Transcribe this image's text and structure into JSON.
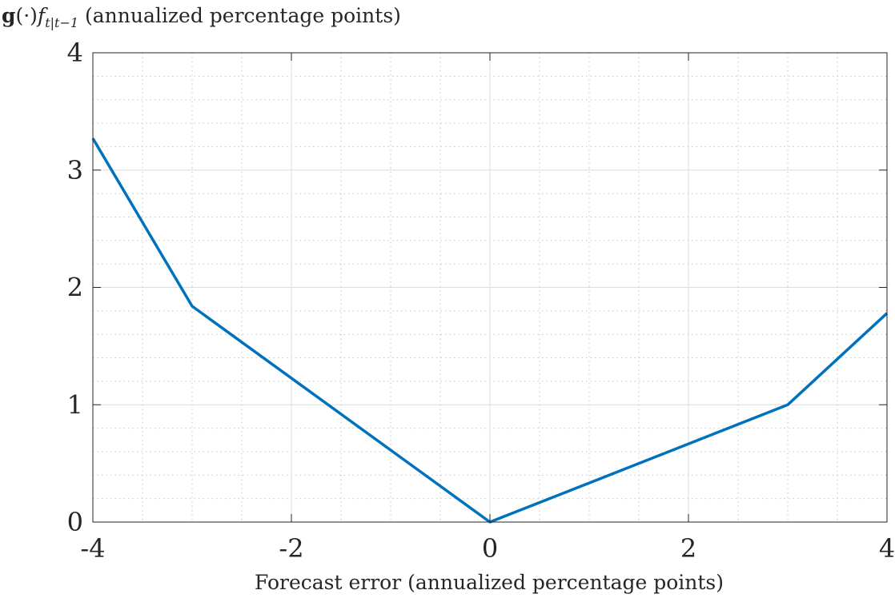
{
  "chart_data": {
    "type": "line",
    "title": "",
    "xlabel": "Forecast error (annualized percentage points)",
    "ylabel": {
      "bold": "g",
      "dot": "(·)",
      "italic": "f",
      "subscript": "t|t−1",
      "rest": " (annualized percentage points)"
    },
    "xlim": [
      -4,
      4
    ],
    "ylim": [
      0,
      4
    ],
    "xticks": [
      -4,
      -2,
      0,
      2,
      4
    ],
    "xtick_labels": [
      "-4",
      "-2",
      "0",
      "2",
      "4"
    ],
    "yticks": [
      0,
      1,
      2,
      3,
      4
    ],
    "ytick_labels": [
      "0",
      "1",
      "2",
      "3",
      "4"
    ],
    "x_minor_step": 0.5,
    "y_minor_step": 0.2,
    "grid": true,
    "minor_grid": true,
    "series": [
      {
        "color": "#0072bd",
        "x": [
          -4,
          -3,
          0,
          3,
          4
        ],
        "y": [
          3.27,
          1.84,
          0,
          1.0,
          1.78
        ]
      }
    ]
  }
}
